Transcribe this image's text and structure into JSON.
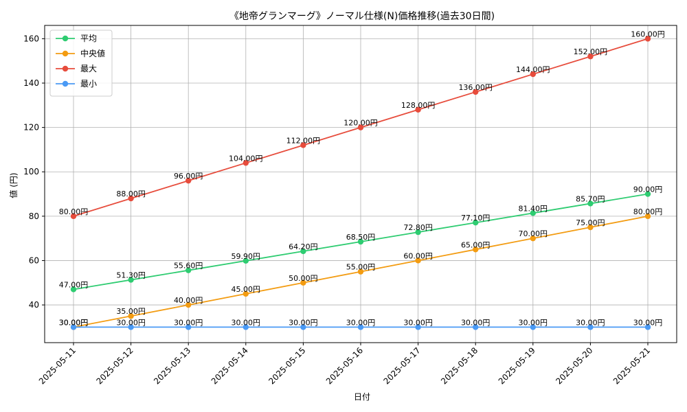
{
  "chart_data": {
    "type": "line",
    "title": "《地帝グランマーグ》ノーマル仕様(N)価格推移(過去30日間)",
    "xlabel": "日付",
    "ylabel": "値 (円)",
    "categories": [
      "2025-05-11",
      "2025-05-12",
      "2025-05-13",
      "2025-05-14",
      "2025-05-15",
      "2025-05-16",
      "2025-05-17",
      "2025-05-18",
      "2025-05-19",
      "2025-05-20",
      "2025-05-21"
    ],
    "ylim": [
      23,
      166
    ],
    "yticks": [
      40,
      60,
      80,
      100,
      120,
      140,
      160
    ],
    "grid": true,
    "legend_position": "top-left",
    "series": [
      {
        "name": "平均",
        "color": "#2ecc71",
        "values": [
          47.0,
          51.3,
          55.6,
          59.9,
          64.2,
          68.5,
          72.8,
          77.1,
          81.4,
          85.7,
          90.0
        ],
        "labels": [
          "47.00円",
          "51.30円",
          "55.60円",
          "59.90円",
          "64.20円",
          "68.50円",
          "72.80円",
          "77.10円",
          "81.40円",
          "85.70円",
          "90.00円"
        ]
      },
      {
        "name": "中央値",
        "color": "#f39c12",
        "values": [
          30,
          35,
          40,
          45,
          50,
          55,
          60,
          65,
          70,
          75,
          80
        ],
        "labels": [
          "30.00円",
          "35.00円",
          "40.00円",
          "45.00円",
          "50.00円",
          "55.00円",
          "60.00円",
          "65.00円",
          "70.00円",
          "75.00円",
          "80.00円"
        ]
      },
      {
        "name": "最大",
        "color": "#e74c3c",
        "values": [
          80,
          88,
          96,
          104,
          112,
          120,
          128,
          136,
          144,
          152,
          160
        ],
        "labels": [
          "80.00円",
          "88.00円",
          "96.00円",
          "104.00円",
          "112.00円",
          "120.00円",
          "128.00円",
          "136.00円",
          "144.00円",
          "152.00円",
          "160.00円"
        ]
      },
      {
        "name": "最小",
        "color": "#4a9af5",
        "values": [
          30,
          30,
          30,
          30,
          30,
          30,
          30,
          30,
          30,
          30,
          30
        ],
        "labels": [
          "30.00円",
          "30.00円",
          "30.00円",
          "30.00円",
          "30.00円",
          "30.00円",
          "30.00円",
          "30.00円",
          "30.00円",
          "30.00円",
          "30.00円"
        ]
      }
    ]
  }
}
